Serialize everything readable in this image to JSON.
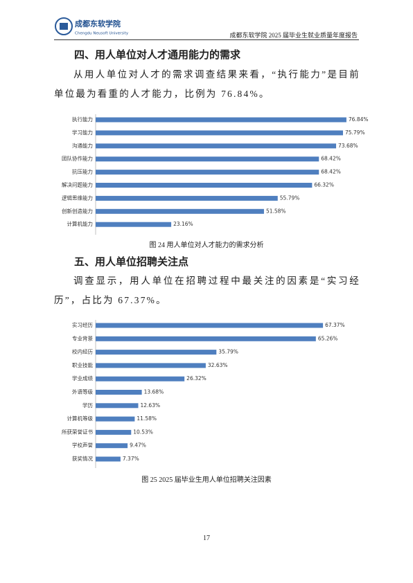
{
  "header": {
    "logo_name": "成都东软学院",
    "logo_subtitle": "Chengdu Neusoft University",
    "report_title": "成都东软学院 2025 届毕业生就业质量年度报告"
  },
  "sections": [
    {
      "heading": "四、用人单位对人才通用能力的需求",
      "paragraph": "从用人单位对人才的需求调查结果来看，“执行能力”是目前单位最为看重的人才能力，比例为 76.84%。"
    },
    {
      "heading": "五、用人单位招聘关注点",
      "paragraph": "调查显示，用人单位在招聘过程中最关注的因素是“实习经历”，占比为 67.37%。"
    }
  ],
  "chart_data": [
    {
      "type": "bar",
      "orientation": "horizontal",
      "caption": "图 24  用人单位对人才能力的需求分析",
      "color": "#4f7fbf",
      "categories": [
        "执行能力",
        "学习能力",
        "沟通能力",
        "团队协作能力",
        "抗压能力",
        "解决问题能力",
        "逻辑思维能力",
        "创新创造能力",
        "计算机能力"
      ],
      "values": [
        76.84,
        75.79,
        73.68,
        68.42,
        68.42,
        66.32,
        55.79,
        51.58,
        23.16
      ],
      "value_labels": [
        "76.84%",
        "75.79%",
        "73.68%",
        "68.42%",
        "68.42%",
        "66.32%",
        "55.79%",
        "51.58%",
        "23.16%"
      ]
    },
    {
      "type": "bar",
      "orientation": "horizontal",
      "caption": "图 25  2025 届毕业生用人单位招聘关注因素",
      "color": "#4f7fbf",
      "categories": [
        "实习经历",
        "专业背景",
        "校内经历",
        "职业技能",
        "学业成绩",
        "外语等级",
        "学历",
        "计算机等级",
        "所获荣誉证书",
        "学校声誉",
        "获奖情况"
      ],
      "values": [
        67.37,
        65.26,
        35.79,
        32.63,
        26.32,
        13.68,
        12.63,
        11.58,
        10.53,
        9.47,
        7.37
      ],
      "value_labels": [
        "67.37%",
        "65.26%",
        "35.79%",
        "32.63%",
        "26.32%",
        "13.68%",
        "12.63%",
        "11.58%",
        "10.53%",
        "9.47%",
        "7.37%"
      ]
    }
  ],
  "footer": {
    "page_number": "17"
  }
}
